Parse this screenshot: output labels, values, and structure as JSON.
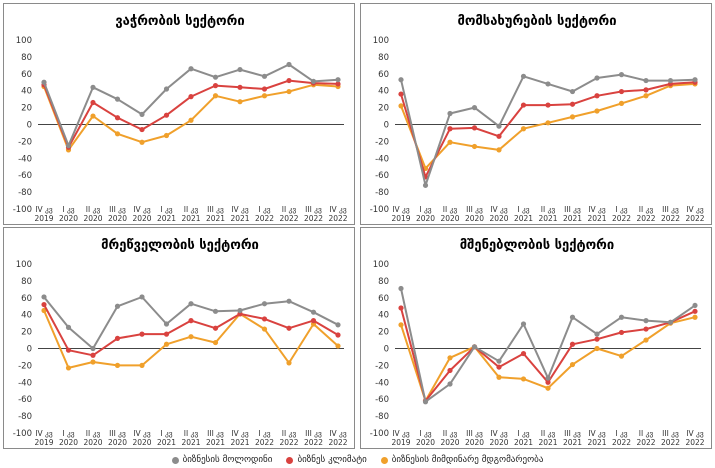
{
  "colors": {
    "expectations": "#8c8c8c",
    "climate": "#d9423f",
    "current": "#f0a02b"
  },
  "x_labels": [
    [
      "IV კვ",
      "2019"
    ],
    [
      "I კვ",
      "2020"
    ],
    [
      "II კვ",
      "2020"
    ],
    [
      "III კვ",
      "2020"
    ],
    [
      "IV კვ",
      "2020"
    ],
    [
      "I კვ",
      "2021"
    ],
    [
      "II კვ",
      "2021"
    ],
    [
      "III კვ",
      "2021"
    ],
    [
      "IV კვ",
      "2021"
    ],
    [
      "I კვ",
      "2022"
    ],
    [
      "II კვ",
      "2022"
    ],
    [
      "III კვ",
      "2022"
    ],
    [
      "IV კვ",
      "2022"
    ]
  ],
  "y_ticks": [
    "100",
    "80",
    "60",
    "40",
    "20",
    "0",
    "-20",
    "-40",
    "-60",
    "-80",
    "-100"
  ],
  "legend": [
    {
      "label": "ბიზნესის მოლოდინი",
      "series": "expectations"
    },
    {
      "label": "ბიზნეს კლიმატი",
      "series": "climate"
    },
    {
      "label": "ბიზნესის მიმდინარე მდგომარეობა",
      "series": "current"
    }
  ],
  "chart_data": [
    {
      "type": "line",
      "title": "ვაჭრობის სექტორი",
      "ylim": [
        -100,
        100
      ],
      "categories": [
        "IV კვ 2019",
        "I კვ 2020",
        "II კვ 2020",
        "III კვ 2020",
        "IV კვ 2020",
        "I კვ 2021",
        "II კვ 2021",
        "III კვ 2021",
        "IV კვ 2021",
        "I კვ 2022",
        "II კვ 2022",
        "III კვ 2022",
        "IV კვ 2022"
      ],
      "series": [
        {
          "name": "ბიზნესის მოლოდინი",
          "key": "expectations",
          "values": [
            50,
            -25,
            44,
            30,
            12,
            42,
            66,
            56,
            65,
            57,
            71,
            51,
            53
          ]
        },
        {
          "name": "ბიზნეს კლიმატი",
          "key": "climate",
          "values": [
            47,
            -27,
            26,
            8,
            -6,
            11,
            33,
            46,
            44,
            42,
            52,
            49,
            48
          ]
        },
        {
          "name": "ბიზნესის მიმდინარე მდგომარეობა",
          "key": "current",
          "values": [
            45,
            -30,
            10,
            -11,
            -21,
            -13,
            5,
            34,
            27,
            34,
            39,
            47,
            45
          ]
        }
      ]
    },
    {
      "type": "line",
      "title": "მომსახურების სექტორი",
      "ylim": [
        -100,
        100
      ],
      "categories": [
        "IV კვ 2019",
        "I კვ 2020",
        "II კვ 2020",
        "III კვ 2020",
        "IV კვ 2020",
        "I კვ 2021",
        "II კვ 2021",
        "III კვ 2021",
        "IV კვ 2021",
        "I კვ 2022",
        "II კვ 2022",
        "III კვ 2022",
        "IV კვ 2022"
      ],
      "series": [
        {
          "name": "ბიზნესის მოლოდინი",
          "key": "expectations",
          "values": [
            53,
            -72,
            13,
            20,
            -2,
            57,
            48,
            39,
            55,
            59,
            52,
            52,
            53
          ]
        },
        {
          "name": "ბიზნეს კლიმატი",
          "key": "climate",
          "values": [
            36,
            -62,
            -5,
            -4,
            -14,
            23,
            23,
            24,
            34,
            39,
            41,
            48,
            50
          ]
        },
        {
          "name": "ბიზნესის მიმდინარე მდგომარეობა",
          "key": "current",
          "values": [
            22,
            -52,
            -21,
            -26,
            -30,
            -5,
            2,
            9,
            16,
            25,
            34,
            46,
            48
          ]
        }
      ]
    },
    {
      "type": "line",
      "title": "მრეწველობის სექტორი",
      "ylim": [
        -100,
        100
      ],
      "categories": [
        "IV კვ 2019",
        "I კვ 2020",
        "II კვ 2020",
        "III კვ 2020",
        "IV კვ 2020",
        "I კვ 2021",
        "II კვ 2021",
        "III კვ 2021",
        "IV კვ 2021",
        "I კვ 2022",
        "II კვ 2022",
        "III კვ 2022",
        "IV კვ 2022"
      ],
      "series": [
        {
          "name": "ბიზნესის მოლოდინი",
          "key": "expectations",
          "values": [
            61,
            25,
            0,
            50,
            61,
            29,
            53,
            44,
            45,
            53,
            56,
            43,
            28
          ]
        },
        {
          "name": "ბიზნეს კლიმატი",
          "key": "climate",
          "values": [
            52,
            -2,
            -8,
            12,
            17,
            17,
            33,
            24,
            41,
            35,
            24,
            33,
            16
          ]
        },
        {
          "name": "ბიზნესის მიმდინარე მდგომარეობა",
          "key": "current",
          "values": [
            45,
            -23,
            -16,
            -20,
            -20,
            5,
            14,
            7,
            41,
            23,
            -17,
            29,
            3
          ]
        }
      ]
    },
    {
      "type": "line",
      "title": "მშენებლობის სექტორი",
      "ylim": [
        -100,
        100
      ],
      "categories": [
        "IV კვ 2019",
        "I კვ 2020",
        "II კვ 2020",
        "III კვ 2020",
        "IV კვ 2020",
        "I კვ 2021",
        "II კვ 2021",
        "III კვ 2021",
        "IV კვ 2021",
        "I კვ 2022",
        "II კვ 2022",
        "III კვ 2022",
        "IV კვ 2022"
      ],
      "series": [
        {
          "name": "ბიზნესის მოლოდინი",
          "key": "expectations",
          "values": [
            71,
            -63,
            -42,
            2,
            -15,
            29,
            -35,
            37,
            17,
            37,
            33,
            31,
            51
          ]
        },
        {
          "name": "ბიზნეს კლიმატი",
          "key": "climate",
          "values": [
            48,
            -62,
            -26,
            2,
            -22,
            -6,
            -40,
            5,
            11,
            19,
            23,
            31,
            44
          ]
        },
        {
          "name": "ბიზნესის მიმდინარე მდგომარეობა",
          "key": "current",
          "values": [
            28,
            -62,
            -11,
            2,
            -34,
            -36,
            -47,
            -19,
            0,
            -9,
            10,
            30,
            37
          ]
        }
      ]
    }
  ]
}
